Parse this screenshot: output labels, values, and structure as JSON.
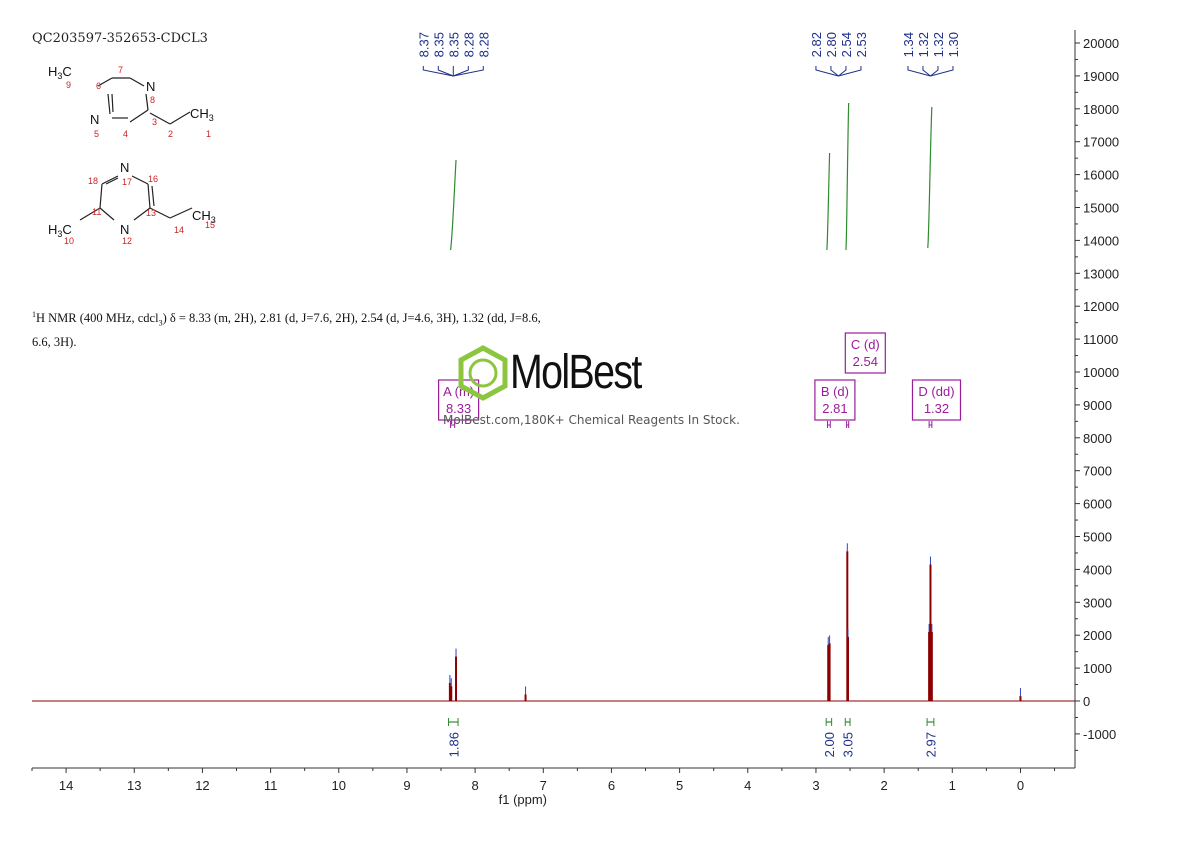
{
  "sample_title": "QC203597-352653-CDCL3",
  "nmr_description": {
    "nucleus_sup": "1",
    "line1_prefix": "H NMR (400 MHz, cdcl",
    "line1_sub": "3",
    "line1_rest": ") δ = 8.33 (m, 2H), 2.81 (d, J=7.6, 2H), 2.54 (d, J=4.6, 3H), 1.32 (dd, J=8.6,",
    "line2": "6.6, 3H)."
  },
  "structure_1": {
    "atoms": {
      "h3c": "H3C",
      "n_top": "N",
      "n_left": "N",
      "ch3": "CH3"
    },
    "numbers": [
      "9",
      "6",
      "7",
      "8",
      "5",
      "4",
      "3",
      "2",
      "1"
    ]
  },
  "structure_2": {
    "atoms": {
      "n_top": "N",
      "n_bottom": "N",
      "h3c": "H3C",
      "ch3": "CH3"
    },
    "numbers": [
      "18",
      "17",
      "16",
      "11",
      "13",
      "14",
      "15",
      "10",
      "12"
    ]
  },
  "watermark": {
    "name": "MolBest",
    "subtitle": "MolBest.com,180K+ Chemical Reagents In Stock."
  },
  "colors": {
    "axis": "#333333",
    "spectrum": "#8b0000",
    "integral": "#2e8b2e",
    "peak_label": "#1f2f8a",
    "multiplet": "#9b1c9b",
    "structure_number": "#cc2222"
  },
  "chart_data": {
    "type": "line",
    "title": "",
    "xlabel": "f1 (ppm)",
    "ylabel": "",
    "xlim": [
      14.5,
      -0.8
    ],
    "ylim": [
      -2000,
      20300
    ],
    "x_ticks": [
      14,
      13,
      12,
      11,
      10,
      9,
      8,
      7,
      6,
      5,
      4,
      3,
      2,
      1,
      0
    ],
    "y_ticks": [
      20000,
      19000,
      18000,
      17000,
      16000,
      15000,
      14000,
      13000,
      12000,
      11000,
      10000,
      9000,
      8000,
      7000,
      6000,
      5000,
      4000,
      3000,
      2000,
      1000,
      0,
      -1000
    ],
    "peaks": [
      {
        "ppm": 8.37,
        "height": 550
      },
      {
        "ppm": 8.35,
        "height": 450
      },
      {
        "ppm": 8.28,
        "height": 1350
      },
      {
        "ppm": 7.26,
        "height": 200
      },
      {
        "ppm": 2.82,
        "height": 1700
      },
      {
        "ppm": 2.8,
        "height": 1750
      },
      {
        "ppm": 2.54,
        "height": 4550
      },
      {
        "ppm": 2.53,
        "height": 1950
      },
      {
        "ppm": 1.34,
        "height": 2100
      },
      {
        "ppm": 1.32,
        "height": 4150
      },
      {
        "ppm": 1.3,
        "height": 2100
      },
      {
        "ppm": 0.0,
        "height": 150
      }
    ],
    "peak_labels": [
      {
        "group": "A",
        "labels": [
          "8.37",
          "8.35",
          "8.35",
          "8.28",
          "8.28"
        ],
        "anchor": 8.32
      },
      {
        "group": "B",
        "labels": [
          "2.82",
          "2.80",
          "2.54",
          "2.53"
        ],
        "anchor": 2.67
      },
      {
        "group": "C",
        "labels": [
          "1.34",
          "1.32",
          "1.32",
          "1.30"
        ],
        "anchor": 1.32
      }
    ],
    "multiplets": [
      {
        "name": "A (m)",
        "shift": "8.33",
        "ppm": 8.33
      },
      {
        "name": "B (d)",
        "shift": "2.81",
        "ppm": 2.81
      },
      {
        "name": "C (d)",
        "shift": "2.54",
        "ppm": 2.54
      },
      {
        "name": "D (dd)",
        "shift": "1.32",
        "ppm": 1.32
      }
    ],
    "integrals": [
      {
        "value": "1.86",
        "from": 8.39,
        "to": 8.25
      },
      {
        "value": "2.00",
        "from": 2.85,
        "to": 2.77
      },
      {
        "value": "3.05",
        "from": 2.57,
        "to": 2.5
      },
      {
        "value": "2.97",
        "from": 1.37,
        "to": 1.27
      }
    ]
  }
}
